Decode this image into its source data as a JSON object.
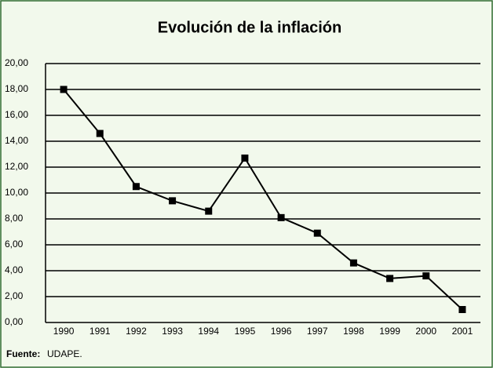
{
  "chart_data": {
    "type": "line",
    "title": "Evolución de la inflación",
    "categories": [
      "1990",
      "1991",
      "1992",
      "1993",
      "1994",
      "1995",
      "1996",
      "1997",
      "1998",
      "1999",
      "2000",
      "2001"
    ],
    "values": [
      18.0,
      14.6,
      10.5,
      9.4,
      8.6,
      12.7,
      8.1,
      6.9,
      4.6,
      3.4,
      3.6,
      1.0
    ],
    "color": "#000000",
    "ylim": [
      0,
      20
    ],
    "yticks": [
      {
        "value": 0,
        "label": "0,00"
      },
      {
        "value": 2,
        "label": "2,00"
      },
      {
        "value": 4,
        "label": "4,00"
      },
      {
        "value": 6,
        "label": "6,00"
      },
      {
        "value": 8,
        "label": "8,00"
      },
      {
        "value": 10,
        "label": "10,00"
      },
      {
        "value": 12,
        "label": "12,00"
      },
      {
        "value": 14,
        "label": "14,00"
      },
      {
        "value": 16,
        "label": "16,00"
      },
      {
        "value": 18,
        "label": "18,00"
      },
      {
        "value": 20,
        "label": "20,00"
      }
    ],
    "grid": true,
    "source_label": "Fuente:",
    "source": "UDAPE."
  }
}
